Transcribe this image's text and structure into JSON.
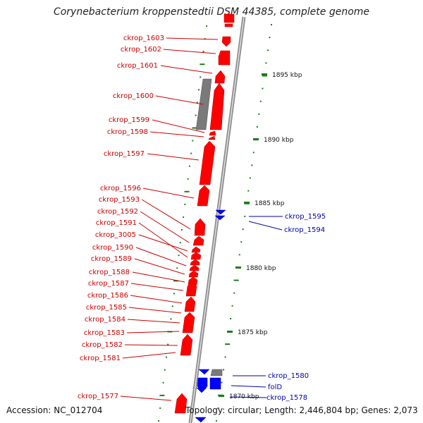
{
  "title": "Corynebacterium kroppenstedtii DSM 44385, complete genome",
  "footer": {
    "accession": "Accession: NC_012704",
    "stats": "Topology: circular; Length: 2,446,804 bp; Genes: 2,073"
  },
  "colors": {
    "forward_gene": "#ff0000",
    "reverse_gene": "#0000ff",
    "pseudo_gene": "#808080",
    "gc_marks": "#1a7f1a",
    "forward_label": "#cc0000",
    "reverse_label": "#0000aa",
    "backbone": "#8c8c8c"
  },
  "scale_ticks": [
    "1895 kbp",
    "1890 kbp",
    "1885 kbp",
    "1880 kbp",
    "1875 kbp",
    "1870 kbp"
  ],
  "forward_labels": [
    "ckrop_1603",
    "ckrop_1602",
    "ckrop_1601",
    "ckrop_1600",
    "ckrop_1599",
    "ckrop_1598",
    "ckrop_1597",
    "ckrop_1596",
    "ckrop_1593",
    "ckrop_1592",
    "ckrop_1591",
    "ckrop_3005",
    "ckrop_1590",
    "ckrop_1589",
    "ckrop_1588",
    "ckrop_1587",
    "ckrop_1586",
    "ckrop_1585",
    "ckrop_1584",
    "ckrop_1583",
    "ckrop_1582",
    "ckrop_1581",
    "ckrop_1577"
  ],
  "reverse_labels": [
    "ckrop_1595",
    "ckrop_1594",
    "ckrop_1580",
    "folD",
    "ckrop_1578"
  ]
}
